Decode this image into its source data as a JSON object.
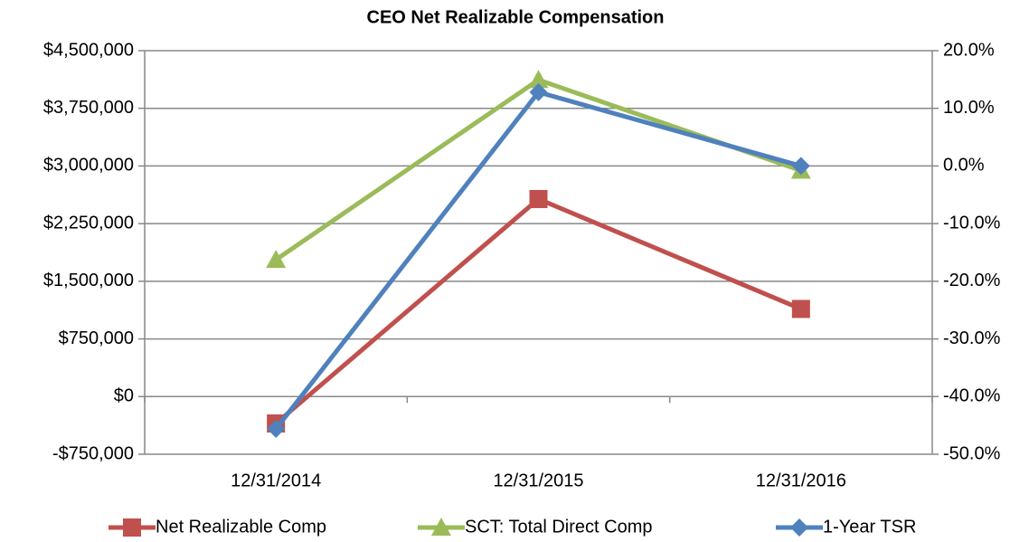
{
  "chart_data": {
    "type": "line",
    "title": "CEO Net Realizable Compensation",
    "categories": [
      "12/31/2014",
      "12/31/2015",
      "12/31/2016"
    ],
    "series": [
      {
        "name": "Net Realizable Comp",
        "color": "#c0504d",
        "marker": "square",
        "values": [
          -350000,
          2570000,
          1140000
        ]
      },
      {
        "name": "SCT: Total Direct Comp",
        "color": "#9bbb59",
        "marker": "triangle",
        "values": [
          1780000,
          4120000,
          2940000
        ]
      },
      {
        "name": "1-Year TSR",
        "color": "#4f81bd",
        "marker": "diamond",
        "axis": "y2",
        "values": [
          -45.6,
          12.8,
          0
        ]
      }
    ],
    "ylim": [
      -750000,
      4500000
    ],
    "yticks": [
      {
        "value": -750000,
        "label": "-$750,000"
      },
      {
        "value": 0,
        "label": "$0"
      },
      {
        "value": 750000,
        "label": "$750,000"
      },
      {
        "value": 1500000,
        "label": "$1,500,000"
      },
      {
        "value": 2250000,
        "label": "$2,250,000"
      },
      {
        "value": 3000000,
        "label": "$3,000,000"
      },
      {
        "value": 3750000,
        "label": "$3,750,000"
      },
      {
        "value": 4500000,
        "label": "$4,500,000"
      }
    ],
    "y2lim": [
      -50,
      20
    ],
    "y2ticks": [
      {
        "value": -50,
        "label": "-50.0%"
      },
      {
        "value": -40,
        "label": "-40.0%"
      },
      {
        "value": -30,
        "label": "-30.0%"
      },
      {
        "value": -20,
        "label": "-20.0%"
      },
      {
        "value": -10,
        "label": "-10.0%"
      },
      {
        "value": 0,
        "label": "0.0%"
      },
      {
        "value": 10,
        "label": "10.0%"
      },
      {
        "value": 20,
        "label": "20.0%"
      }
    ],
    "grid": true,
    "legend": "bottom"
  }
}
